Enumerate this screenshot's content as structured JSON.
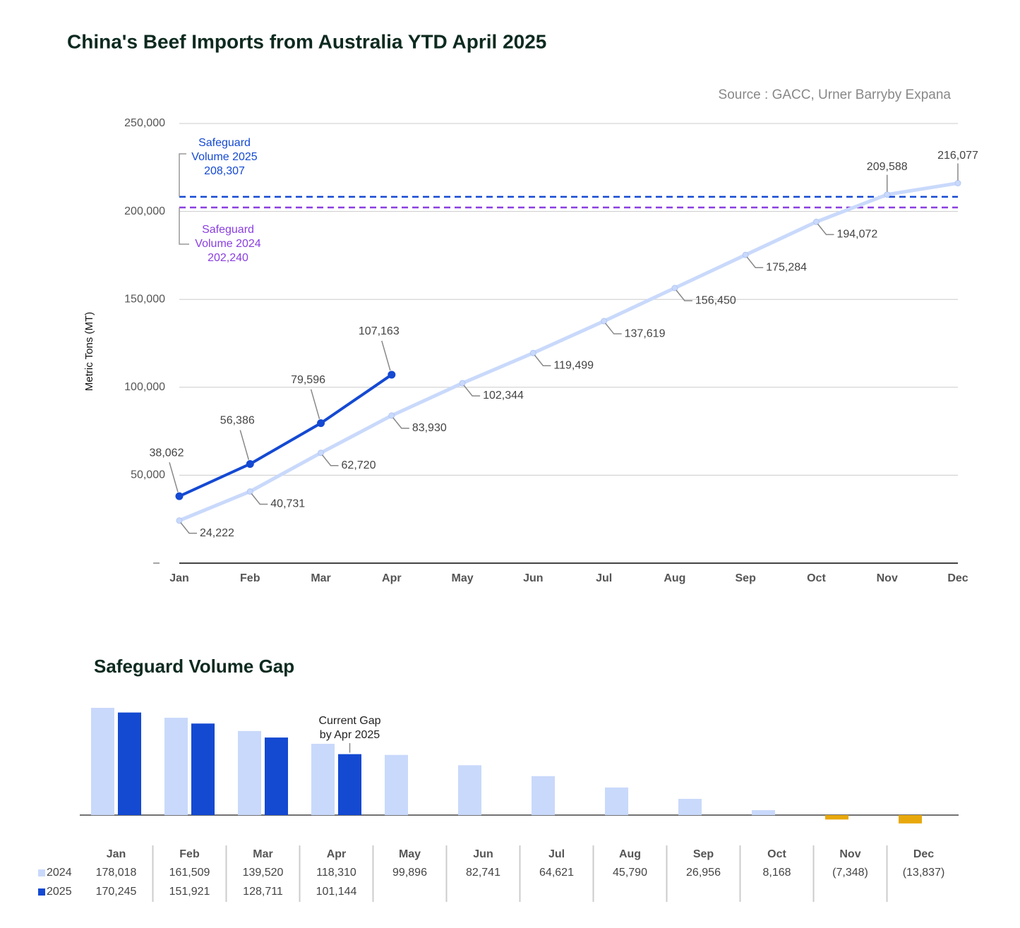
{
  "chart_data": [
    {
      "type": "line",
      "title": "China's Beef Imports from Australia YTD April 2025",
      "subtitle": "Source : GACC, Urner Barryby Expana",
      "y_label": "Metric Tons (MT)",
      "categories": [
        "Jan",
        "Feb",
        "Mar",
        "Apr",
        "May",
        "Jun",
        "Jul",
        "Aug",
        "Sep",
        "Oct",
        "Nov",
        "Dec"
      ],
      "ylim": [
        0,
        250000
      ],
      "yticks": [
        {
          "value": 0,
          "label": "–"
        },
        {
          "value": 50000,
          "label": "50,000"
        },
        {
          "value": 100000,
          "label": "100,000"
        },
        {
          "value": 150000,
          "label": "150,000"
        },
        {
          "value": 200000,
          "label": "200,000"
        },
        {
          "value": 250000,
          "label": "250,000"
        }
      ],
      "grid": true,
      "series": [
        {
          "color": "#c9d9fb",
          "values": [
            24222,
            40731,
            62720,
            83930,
            102344,
            119499,
            137619,
            156450,
            175284,
            194072,
            209588,
            216077
          ],
          "value_labels": [
            "24,222",
            "40,731",
            "62,720",
            "83,930",
            "102,344",
            "119,499",
            "137,619",
            "156,450",
            "175,284",
            "194,072",
            "209,588",
            "216,077"
          ]
        },
        {
          "color": "#1449d2",
          "values": [
            38062,
            56386,
            79596,
            107163,
            null,
            null,
            null,
            null,
            null,
            null,
            null,
            null
          ],
          "value_labels": [
            "38,062",
            "56,386",
            "79,596",
            "107,163",
            null,
            null,
            null,
            null,
            null,
            null,
            null,
            null
          ]
        }
      ],
      "reference_lines": [
        {
          "label_lines": [
            "Safeguard",
            "Volume 2025"
          ],
          "value": 208307,
          "value_label": "208,307",
          "color": "#1449d2"
        },
        {
          "label_lines": [
            "Safeguard",
            "Volume 2024"
          ],
          "value": 202240,
          "value_label": "202,240",
          "color": "#8a3ee0"
        }
      ]
    },
    {
      "type": "bar",
      "title": "Safeguard Volume Gap",
      "categories": [
        "Jan",
        "Feb",
        "Mar",
        "Apr",
        "May",
        "Jun",
        "Jul",
        "Aug",
        "Sep",
        "Oct",
        "Nov",
        "Dec"
      ],
      "negative_color": "#e8a80c",
      "series": [
        {
          "name": "2024",
          "color": "#c9d9fb",
          "values": [
            178018,
            161509,
            139520,
            118310,
            99896,
            82741,
            64621,
            45790,
            26956,
            8168,
            -7348,
            -13837
          ],
          "value_labels": [
            "178,018",
            "161,509",
            "139,520",
            "118,310",
            "99,896",
            "82,741",
            "64,621",
            "45,790",
            "26,956",
            "8,168",
            "(7,348)",
            "(13,837)"
          ]
        },
        {
          "name": "2025",
          "color": "#1449d2",
          "values": [
            170245,
            151921,
            128711,
            101144,
            null,
            null,
            null,
            null,
            null,
            null,
            null,
            null
          ],
          "value_labels": [
            "170,245",
            "151,921",
            "128,711",
            "101,144",
            null,
            null,
            null,
            null,
            null,
            null,
            null,
            null
          ]
        }
      ],
      "annotations": [
        {
          "lines": [
            "Current Gap",
            "by Apr 2025"
          ]
        }
      ]
    }
  ]
}
